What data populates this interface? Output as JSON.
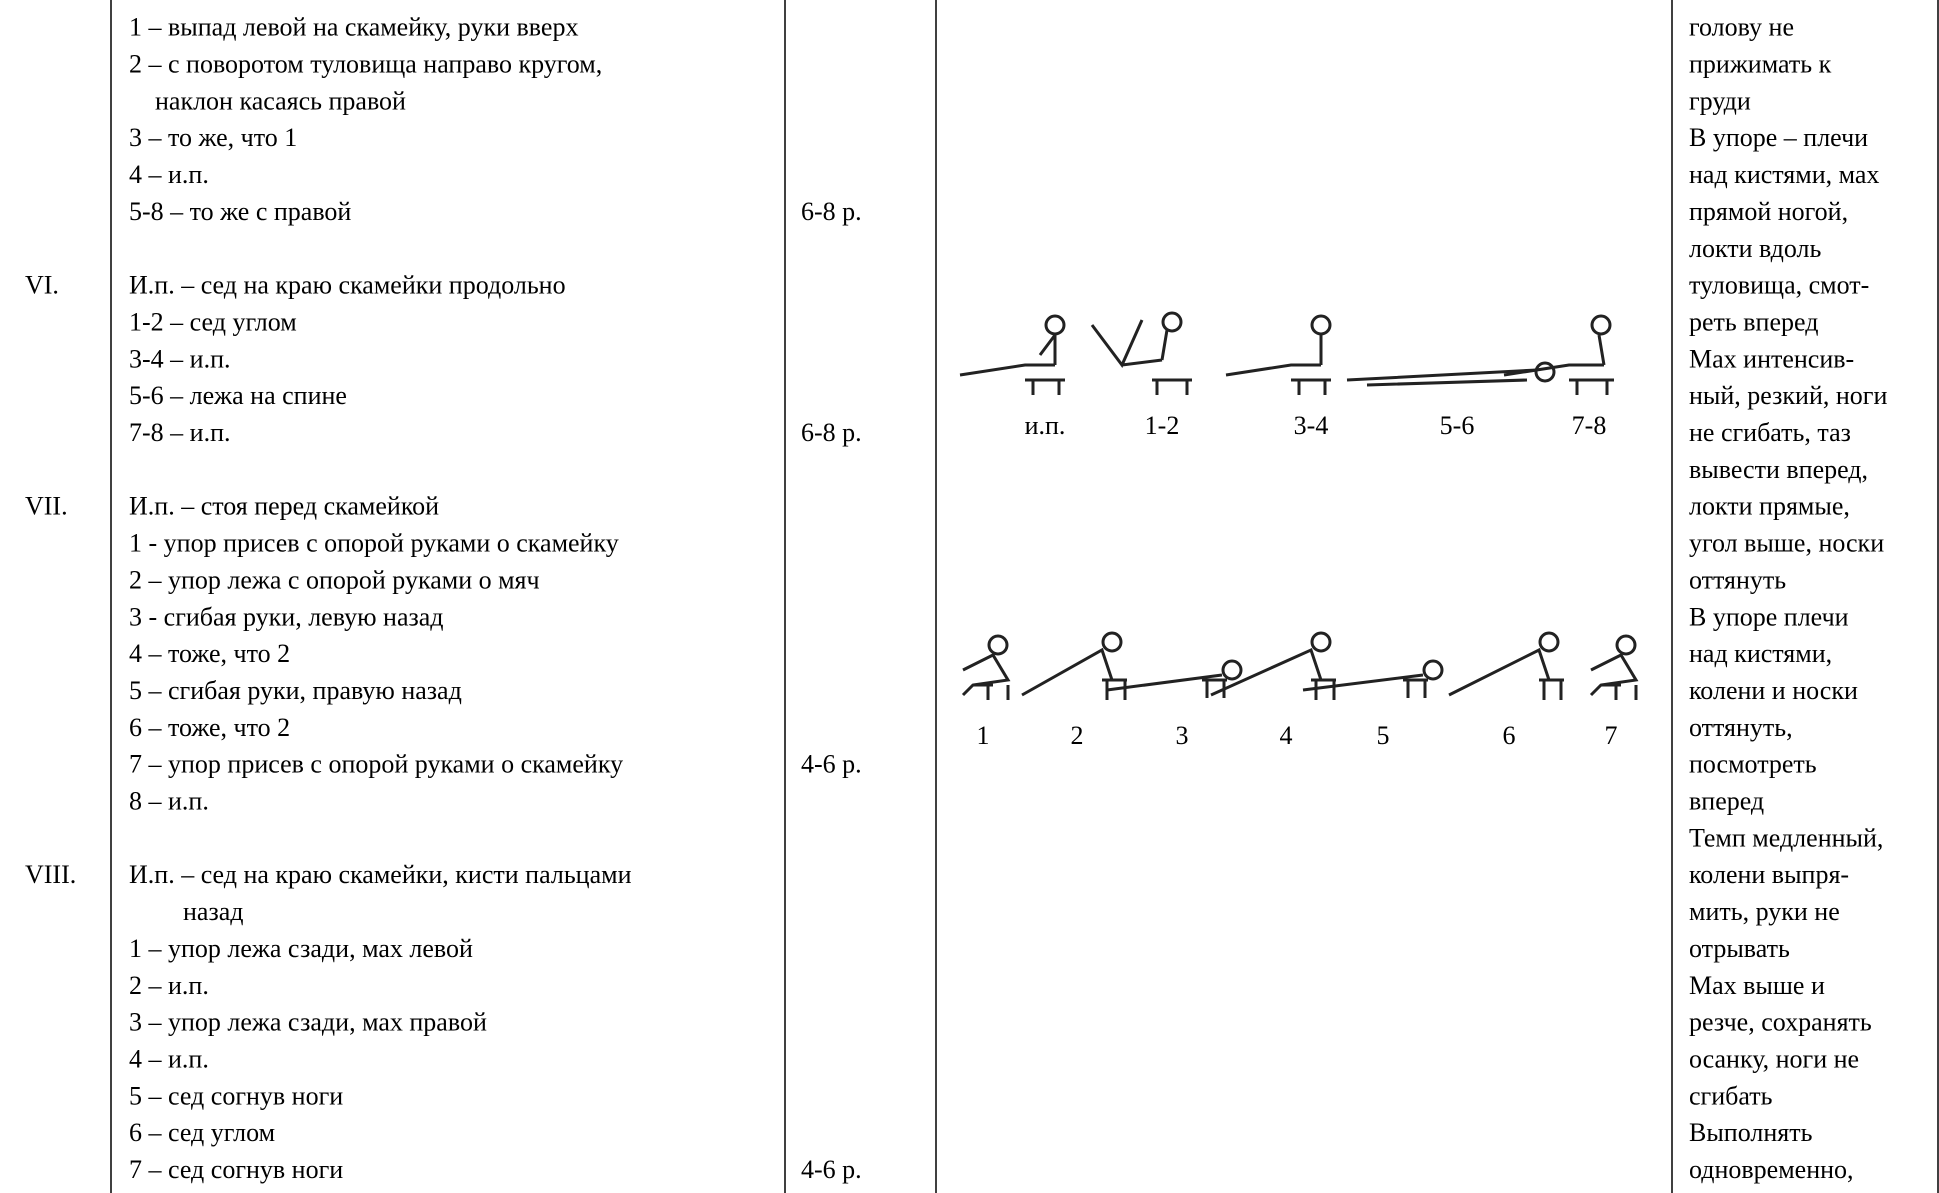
{
  "table": {
    "rows": [
      {
        "number": null,
        "lines": [
          "1 – выпад левой на скамейку, руки вверх",
          "2 – с поворотом туловища направо кругом,",
          "наклон касаясь правой",
          "3 – то же, что 1",
          "4 – и.п.",
          "5-8 – то же с правой"
        ],
        "dose": "6-8 р."
      },
      {
        "number": "VI.",
        "lines": [
          "И.п. – сед на краю скамейки продольно",
          "1-2 – сед углом",
          "3-4 – и.п.",
          "5-6 – лежа на спине",
          "7-8 – и.п."
        ],
        "dose": "6-8 р."
      },
      {
        "number": "VII.",
        "lines": [
          "И.п. – стоя перед скамейкой",
          "1 - упор присев с опорой руками о скамейку",
          "2 – упор лежа с опорой руками о мяч",
          "3 - сгибая руки, левую назад",
          "4 – тоже, что 2",
          "5 – сгибая руки, правую назад",
          "6 – тоже, что 2",
          "7 – упор присев с опорой руками о скамейку",
          "8 – и.п."
        ],
        "dose": "4-6 р."
      },
      {
        "number": "VIII.",
        "lines": [
          "И.п. – сед на краю скамейки, кисти пальцами",
          "назад",
          "1 – упор лежа сзади, мах левой",
          "2 – и.п.",
          "3 – упор лежа сзади, мах правой",
          "4 – и.п.",
          "5 – сед согнув ноги",
          "6 – сед углом",
          "7 – сед согнув ноги"
        ],
        "dose": "4-6 р."
      }
    ],
    "figures": [
      {
        "labels": [
          "и.п.",
          "1-2",
          "3-4",
          "5-6",
          "7-8"
        ]
      },
      {
        "labels": [
          "1",
          "2",
          "3",
          "4",
          "5",
          "6",
          "7"
        ]
      }
    ],
    "notes_lines": [
      "голову не",
      "прижимать к",
      "груди",
      "В упоре – плечи",
      "над кистями, мах",
      "прямой ногой,",
      "локти вдоль",
      "туловища, смот-",
      "реть вперед",
      "Мах интенсив-",
      "ный, резкий, ноги",
      "не сгибать, таз",
      "вывести вперед,",
      "локти прямые,",
      "угол выше, носки",
      "оттянуть",
      "В упоре плечи",
      "над кистями,",
      "колени и носки",
      "оттянуть,",
      "посмотреть",
      "вперед",
      "Темп медленный,",
      "колени выпря-",
      "мить, руки не",
      "отрывать",
      "Мах выше и",
      "резче, сохранять",
      "осанку, ноги не",
      "сгибать",
      "Выполнять",
      "одновременно,"
    ]
  }
}
